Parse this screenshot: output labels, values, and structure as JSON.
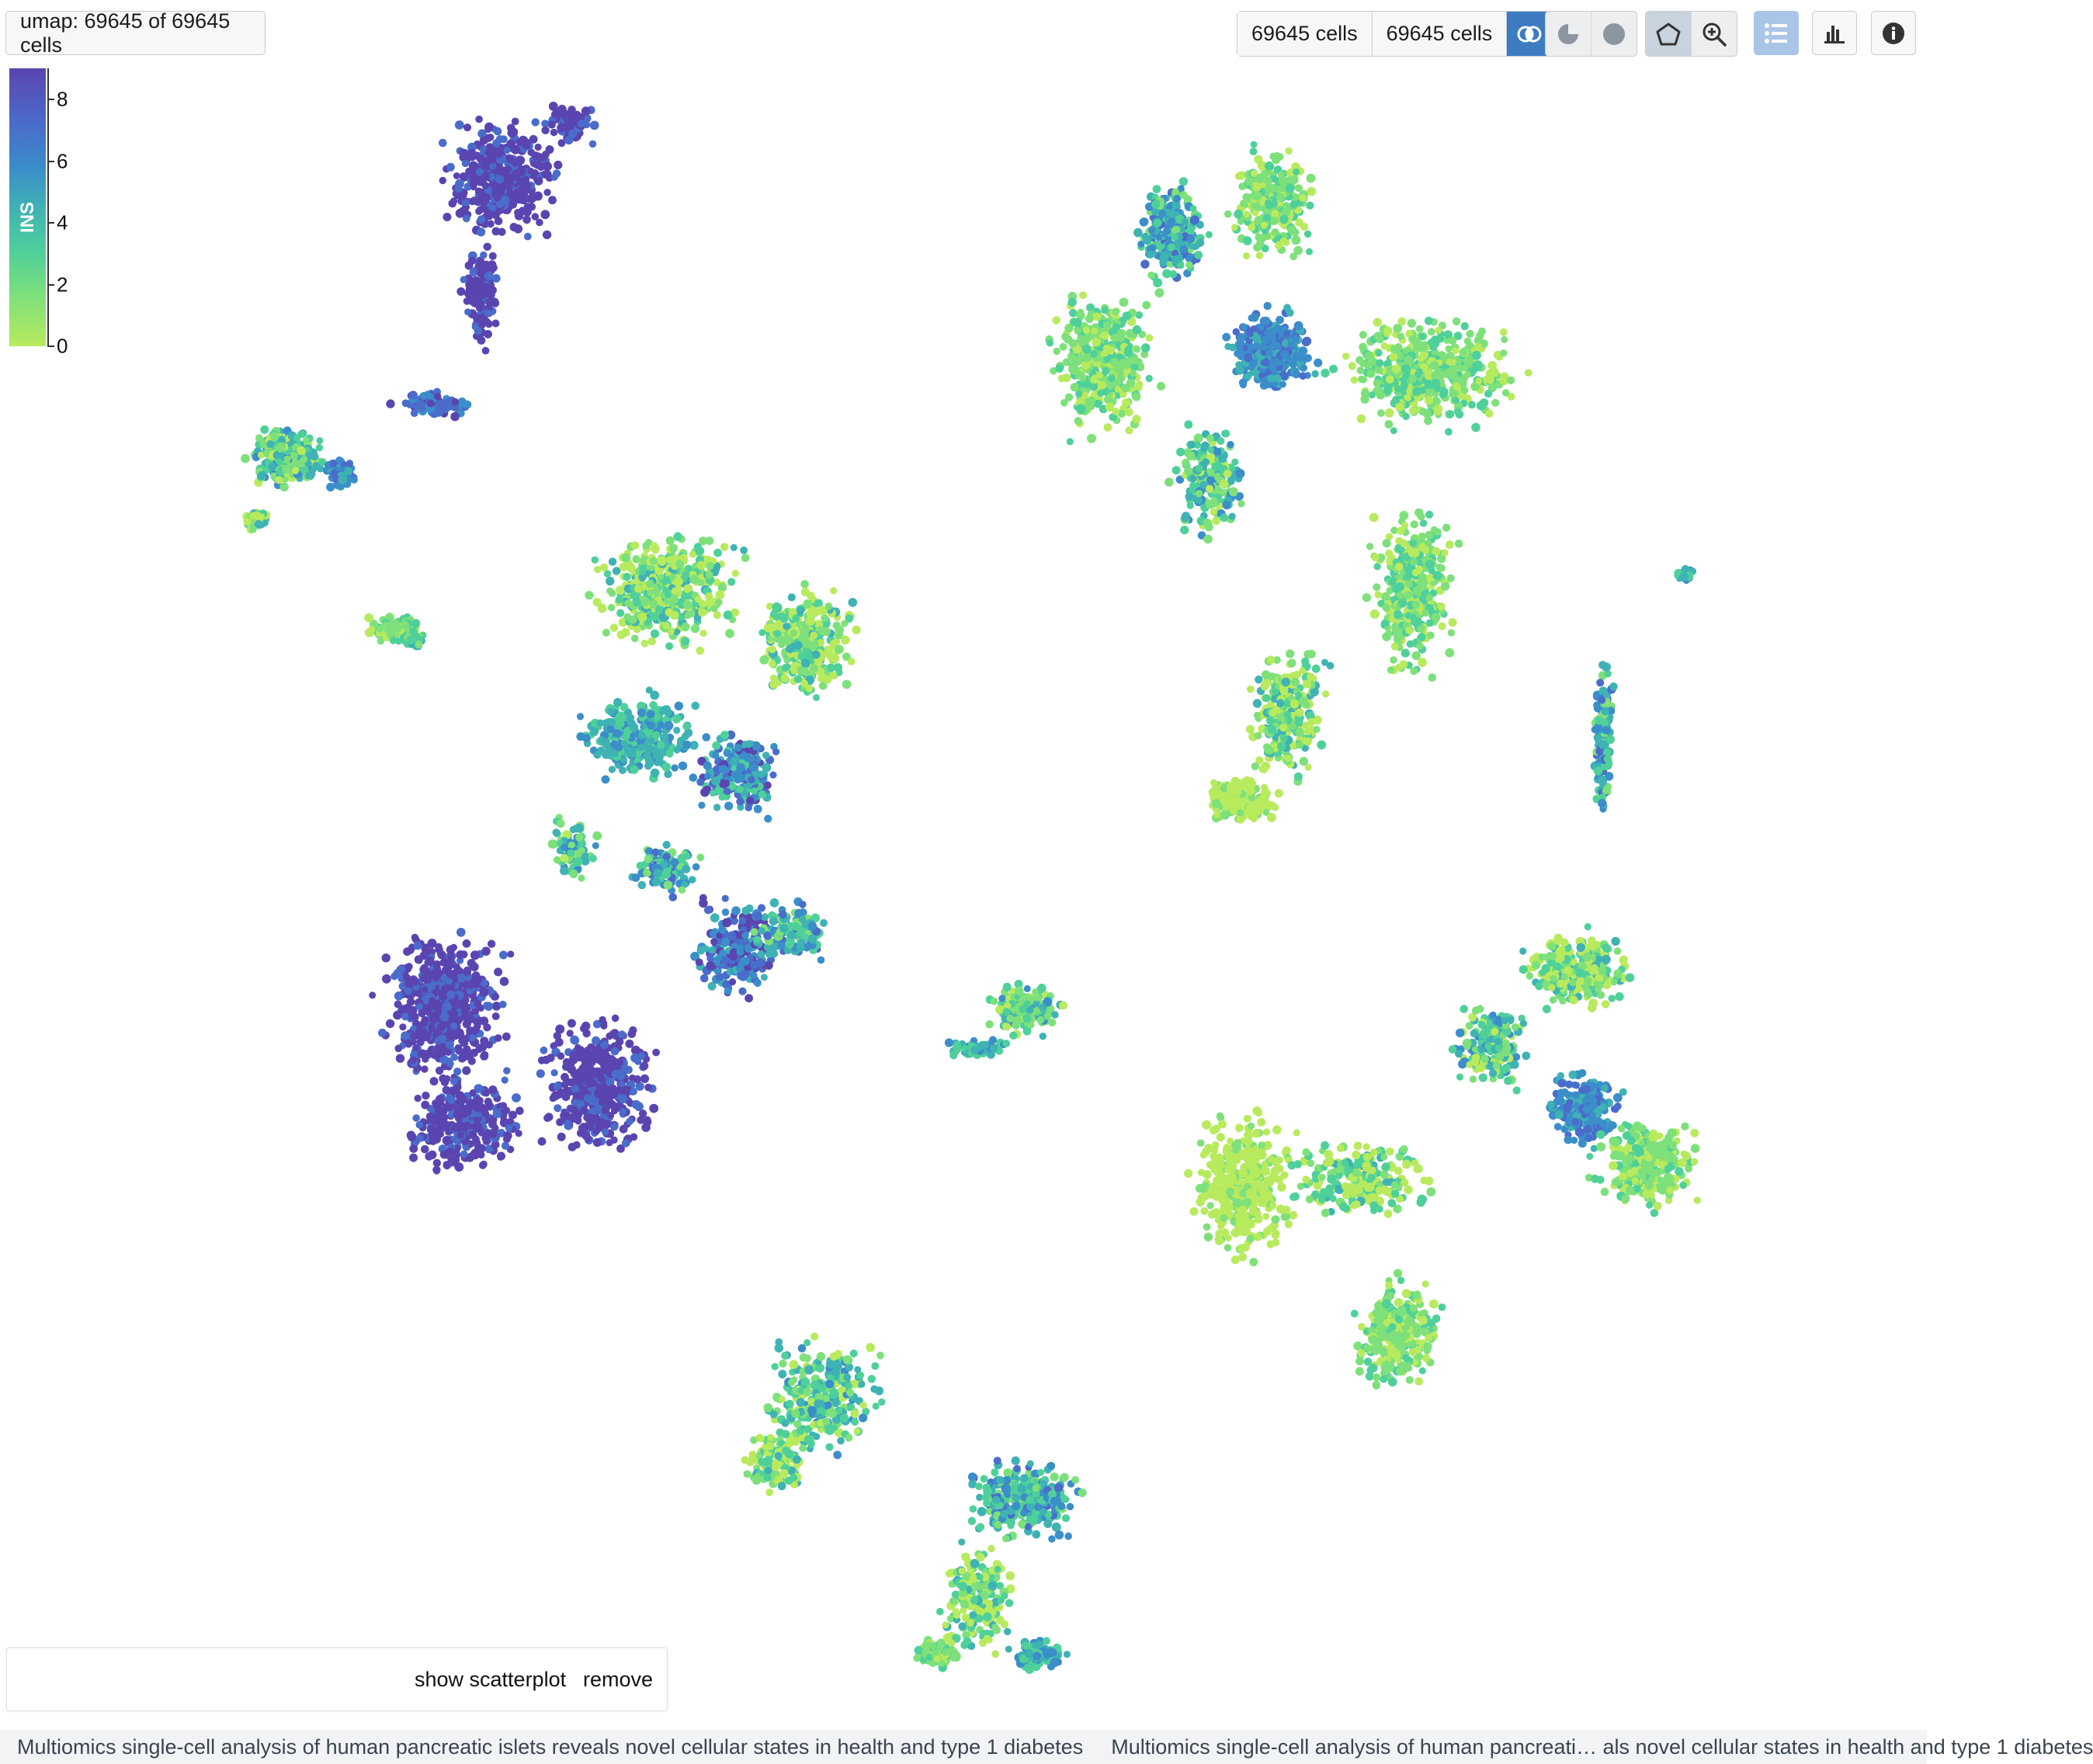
{
  "toolbar": {
    "embedding_label": "umap: 69645 of 69645 cells",
    "cells_selected_a": "69645 cells",
    "cells_selected_b": "69645 cells"
  },
  "legend": {
    "gene": "INS",
    "ticks": [
      "8",
      "6",
      "4",
      "2",
      "0"
    ],
    "scale_min": 0,
    "scale_max": 9,
    "colors": [
      "#b8ea5e",
      "#7ee07a",
      "#4fd09a",
      "#3fb2b4",
      "#3b8ec9",
      "#4a6ccb",
      "#5a45b0"
    ]
  },
  "footer": {
    "show_scatterplot": "show scatterplot",
    "remove": "remove"
  },
  "breadcrumb": {
    "items": [
      "Multiomics single-cell analysis of human pancreatic islets reveals novel cellular states in health and type 1 diabetes",
      "Multiomics single-cell analysis of human pancreati… als novel cellular states in health and type 1 diabetes"
    ]
  }
}
